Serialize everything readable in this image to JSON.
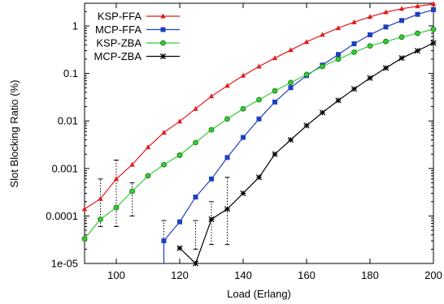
{
  "chart_data": {
    "type": "line",
    "title": "",
    "xlabel": "Load (Erlang)",
    "ylabel": "Slot Blocking Ratio (%)",
    "x_scale": "linear",
    "y_scale": "log",
    "xlim": [
      90,
      200
    ],
    "ylim": [
      1e-05,
      3
    ],
    "x_ticks": [
      100,
      120,
      140,
      160,
      180,
      200
    ],
    "y_ticks": [
      {
        "value": 1e-05,
        "label": "1e-05"
      },
      {
        "value": 0.0001,
        "label": "0.0001"
      },
      {
        "value": 0.001,
        "label": "0.001"
      },
      {
        "value": 0.01,
        "label": "0.01"
      },
      {
        "value": 0.1,
        "label": "0.1"
      },
      {
        "value": 1,
        "label": "1"
      }
    ],
    "grid": false,
    "legend_position": "top-left",
    "series": [
      {
        "name": "KSP-FFA",
        "color": "#e41a1c",
        "marker": "triangle",
        "x": [
          90,
          95,
          100,
          105,
          110,
          115,
          120,
          125,
          130,
          135,
          140,
          145,
          150,
          155,
          160,
          165,
          170,
          175,
          180,
          185,
          190,
          195,
          200
        ],
        "y": [
          0.00014,
          0.00023,
          0.0006,
          0.0012,
          0.0028,
          0.0057,
          0.0098,
          0.018,
          0.033,
          0.055,
          0.09,
          0.14,
          0.21,
          0.31,
          0.46,
          0.65,
          0.9,
          1.2,
          1.55,
          1.95,
          2.3,
          2.6,
          2.9
        ]
      },
      {
        "name": "MCP-FFA",
        "color": "#1f3fbf",
        "marker": "square",
        "x": [
          115,
          120,
          125,
          130,
          135,
          140,
          145,
          150,
          155,
          160,
          165,
          170,
          175,
          180,
          185,
          190,
          195,
          200
        ],
        "y": [
          3e-05,
          7.5e-05,
          0.00025,
          0.0006,
          0.0017,
          0.0045,
          0.011,
          0.025,
          0.05,
          0.09,
          0.15,
          0.25,
          0.42,
          0.65,
          0.95,
          1.3,
          1.75,
          2.2
        ]
      },
      {
        "name": "KSP-ZBA",
        "color": "#33cc33",
        "marker": "circle",
        "x": [
          90,
          95,
          100,
          105,
          110,
          115,
          120,
          125,
          130,
          135,
          140,
          145,
          150,
          155,
          160,
          165,
          170,
          175,
          180,
          185,
          190,
          195,
          200
        ],
        "y": [
          3.3e-05,
          8.5e-05,
          0.00015,
          0.00033,
          0.0007,
          0.0012,
          0.0019,
          0.0035,
          0.0065,
          0.011,
          0.018,
          0.028,
          0.043,
          0.064,
          0.095,
          0.14,
          0.2,
          0.28,
          0.38,
          0.47,
          0.58,
          0.7,
          0.85
        ]
      },
      {
        "name": "MCP-ZBA",
        "color": "#000000",
        "marker": "star",
        "x": [
          120,
          125,
          130,
          135,
          140,
          145,
          150,
          155,
          160,
          165,
          170,
          175,
          180,
          185,
          190,
          195,
          200
        ],
        "y": [
          2.1e-05,
          1e-05,
          8.5e-05,
          0.00014,
          0.0003,
          0.00065,
          0.002,
          0.004,
          0.008,
          0.015,
          0.027,
          0.047,
          0.08,
          0.13,
          0.21,
          0.3,
          0.44
        ]
      }
    ],
    "error_bars": [
      {
        "x": 95,
        "low": 6e-05,
        "high": 0.0006
      },
      {
        "x": 100,
        "low": 6e-05,
        "high": 0.0015
      },
      {
        "x": 105,
        "low": 0.0001,
        "high": 0.0005
      },
      {
        "x": 115,
        "low": 1e-05,
        "high": 8e-05
      },
      {
        "x": 125,
        "low": 2e-05,
        "high": 8e-05
      },
      {
        "x": 130,
        "low": 2.5e-05,
        "high": 0.0002
      },
      {
        "x": 135,
        "low": 2.5e-05,
        "high": 0.00065
      }
    ]
  }
}
